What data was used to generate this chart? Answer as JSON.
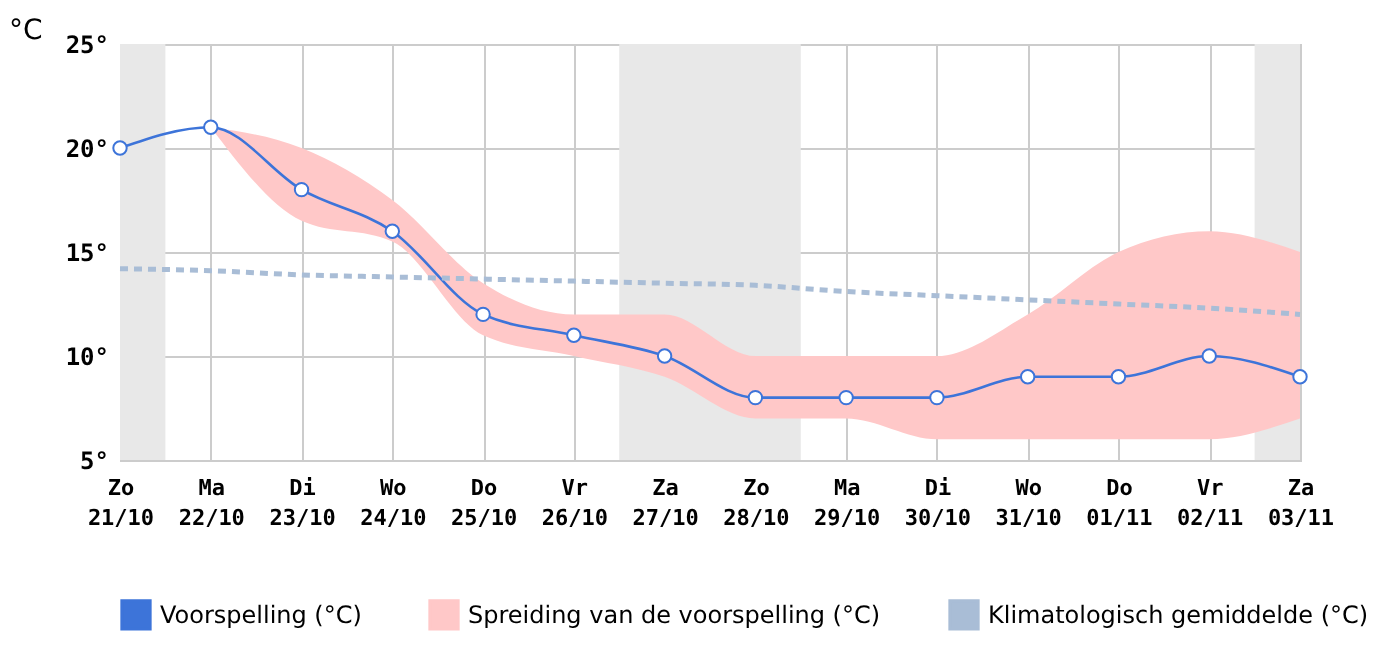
{
  "chart_data": {
    "type": "line",
    "ylabel": "°C",
    "x": [
      "--10-21",
      "--10-22",
      "--10-23",
      "--10-24",
      "--10-25",
      "--10-26",
      "--10-27",
      "--10-28",
      "--10-29",
      "--10-30",
      "--10-31",
      "--11-01",
      "--11-02",
      "--11-03"
    ],
    "xlim": [
      "--10-21",
      "--11-03"
    ],
    "xticks": [
      {
        "value": "--10-21",
        "label": "Zo 21/10"
      },
      {
        "value": "--10-22",
        "label": "Ma 22/10"
      },
      {
        "value": "--10-23",
        "label": "Di 23/10"
      },
      {
        "value": "--10-24",
        "label": "Wo 24/10"
      },
      {
        "value": "--10-25",
        "label": "Do 25/10"
      },
      {
        "value": "--10-26",
        "label": "Vr 26/10"
      },
      {
        "value": "--10-27",
        "label": "Za 27/10"
      },
      {
        "value": "--10-28",
        "label": "Zo 28/10"
      },
      {
        "value": "--10-29",
        "label": "Ma 29/10"
      },
      {
        "value": "--10-30",
        "label": "Di 30/10"
      },
      {
        "value": "--10-31",
        "label": "Wo 31/10"
      },
      {
        "value": "--11-01",
        "label": "Do 01/11"
      },
      {
        "value": "--11-02",
        "label": "Vr 02/11"
      },
      {
        "value": "--11-03",
        "label": "Za 03/11"
      }
    ],
    "ylim": [
      5,
      25
    ],
    "yticks": [
      {
        "value": 5,
        "label": "5°"
      },
      {
        "value": 10,
        "label": "10°"
      },
      {
        "value": 15,
        "label": "15°"
      },
      {
        "value": 20,
        "label": "20°"
      },
      {
        "value": 25,
        "label": "25°"
      }
    ],
    "series": [
      {
        "name": "Voorspelling (°C)",
        "color": "#3d74d9",
        "marker": "circle",
        "values": [
          20,
          21,
          18,
          16,
          12,
          11,
          10,
          8,
          8,
          8,
          9,
          9,
          10,
          9
        ],
        "lower": [
          null,
          21,
          16.5,
          15.5,
          11,
          10,
          9,
          7,
          7,
          6,
          6,
          6,
          6,
          7
        ],
        "upper": [
          null,
          21,
          20,
          17.5,
          13.5,
          12,
          12,
          10,
          10,
          10,
          12,
          15,
          16,
          15
        ]
      },
      {
        "name": "Klimatologisch gemiddelde (°C)",
        "color": "#a9bdd6",
        "line_style": "dashed",
        "marker": "none",
        "values": [
          14.2,
          14.1,
          13.9,
          13.8,
          13.7,
          13.6,
          13.5,
          13.4,
          13.1,
          12.9,
          12.7,
          12.5,
          12.3,
          12
        ]
      }
    ],
    "bands": [
      {
        "axis": "x",
        "from": "--10-21",
        "to": "--10-21T12:00",
        "color": "#e8e8e8"
      },
      {
        "axis": "x",
        "from": "--10-26T12:00",
        "to": "--10-28T12:00",
        "color": "#e8e8e8"
      },
      {
        "axis": "x",
        "from": "--11-02T12:00",
        "to": "--11-03",
        "color": "#e8e8e8"
      }
    ],
    "annotations": [
      "Spreiding van de voorspelling (°C)"
    ],
    "grid": true,
    "legend": "bottom"
  }
}
